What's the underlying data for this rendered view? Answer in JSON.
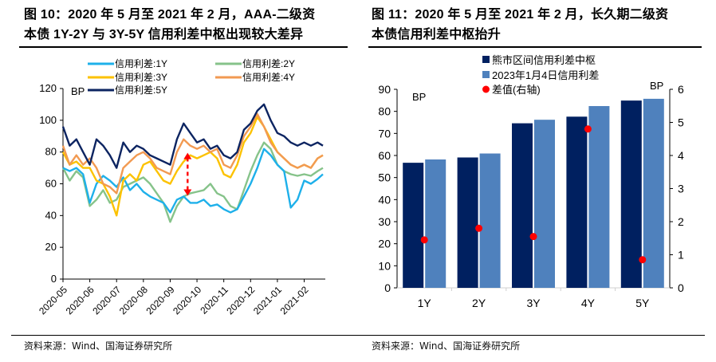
{
  "figures": {
    "left_title_line1": "图 10：2020 年 5 月至 2021 年 2 月，AAA-二级资",
    "left_title_line2": "本债 1Y-2Y 与 3Y-5Y 信用利差中枢出现较大差异",
    "right_title_line1": "图 11：2020 年 5 月至 2021 年 2 月，长久期二级资",
    "right_title_line2": "本债信用利差中枢抬升",
    "left_source": "资料来源：Wind、国海证券研究所",
    "right_source": "资料来源：Wind、国海证券研究所"
  },
  "chart_data": [
    {
      "type": "line",
      "title": "2020 年 5 月至 2021 年 2 月，AAA-二级资本债 1Y-2Y 与 3Y-5Y 信用利差中枢出现较大差异",
      "xlabel": "",
      "ylabel": "BP",
      "ylim": [
        0,
        120
      ],
      "yticks": [
        "0",
        "20",
        "40",
        "60",
        "80",
        "100",
        "120"
      ],
      "xlim": [
        "2020-05-01",
        "2021-02-22"
      ],
      "xticks": [
        "2020-05",
        "2020-06",
        "2020-07",
        "2020-08",
        "2020-09",
        "2020-10",
        "2020-11",
        "2020-12",
        "2021-01",
        "2021-02"
      ],
      "grid": false,
      "legend": "top",
      "annotation": "red dashed double-arrow near 2020-09-20 between ~52 and ~80 BP",
      "annotation_arrow": {
        "x_month_index": 4.65,
        "y_from": 53,
        "y_to": 79,
        "color": "#ff0000"
      },
      "x_month_index": [
        0,
        0.25,
        0.5,
        0.75,
        1,
        1.25,
        1.5,
        1.75,
        2,
        2.25,
        2.5,
        2.75,
        3,
        3.25,
        3.5,
        3.75,
        4,
        4.25,
        4.5,
        4.75,
        5,
        5.25,
        5.5,
        5.75,
        6,
        6.25,
        6.5,
        6.75,
        7,
        7.25,
        7.5,
        7.75,
        8,
        8.25,
        8.5,
        8.75,
        9,
        9.25,
        9.5,
        9.7
      ],
      "series": [
        {
          "name": "信用利差:1Y",
          "color": "#1eb0ea",
          "values": [
            70,
            68,
            70,
            66,
            48,
            60,
            65,
            62,
            58,
            64,
            56,
            60,
            55,
            52,
            50,
            48,
            42,
            50,
            52,
            48,
            48,
            50,
            46,
            47,
            44,
            42,
            44,
            52,
            60,
            70,
            82,
            78,
            72,
            68,
            45,
            50,
            62,
            60,
            63,
            66
          ]
        },
        {
          "name": "信用利差:2Y",
          "color": "#86c38a",
          "values": [
            70,
            62,
            68,
            64,
            46,
            50,
            56,
            48,
            50,
            58,
            60,
            62,
            64,
            60,
            54,
            48,
            36,
            46,
            52,
            54,
            55,
            56,
            60,
            54,
            52,
            46,
            44,
            56,
            68,
            78,
            86,
            82,
            72,
            68,
            66,
            65,
            66,
            65,
            68,
            70
          ]
        },
        {
          "name": "信用利差:3Y",
          "color": "#fcc200",
          "values": [
            80,
            72,
            74,
            70,
            70,
            62,
            60,
            52,
            40,
            62,
            66,
            62,
            72,
            74,
            68,
            62,
            60,
            68,
            74,
            78,
            76,
            78,
            80,
            76,
            66,
            64,
            72,
            86,
            92,
            102,
            96,
            88,
            80,
            76,
            72,
            70,
            72,
            70,
            76,
            78
          ]
        },
        {
          "name": "信用利差:4Y",
          "color": "#f29a52",
          "values": [
            84,
            72,
            78,
            72,
            76,
            70,
            60,
            58,
            54,
            70,
            74,
            78,
            80,
            76,
            70,
            68,
            66,
            80,
            88,
            84,
            82,
            84,
            80,
            82,
            72,
            70,
            78,
            90,
            96,
            104,
            96,
            86,
            80,
            76,
            72,
            70,
            72,
            70,
            76,
            78
          ]
        },
        {
          "name": "信用利差:5Y",
          "color": "#0c2461",
          "values": [
            96,
            84,
            88,
            80,
            72,
            88,
            84,
            78,
            70,
            86,
            80,
            84,
            82,
            78,
            76,
            74,
            72,
            88,
            98,
            92,
            86,
            88,
            82,
            84,
            78,
            76,
            80,
            94,
            98,
            106,
            110,
            100,
            92,
            90,
            86,
            84,
            86,
            84,
            86,
            84
          ]
        }
      ]
    },
    {
      "type": "bar",
      "title": "2020 年 5 月至 2021 年 2 月，长久期二级资本债信用利差中枢抬升",
      "categories": [
        "1Y",
        "2Y",
        "3Y",
        "4Y",
        "5Y"
      ],
      "ylabel": "BP",
      "y2label": "BP",
      "ylim": [
        0,
        90
      ],
      "yticks": [
        "0",
        "10",
        "20",
        "30",
        "40",
        "50",
        "60",
        "70",
        "80",
        "90"
      ],
      "y2lim": [
        0,
        6
      ],
      "y2ticks": [
        "0",
        "1",
        "2",
        "3",
        "4",
        "5",
        "6"
      ],
      "grid": false,
      "legend": "top",
      "series": [
        {
          "name": "熊市区间信用利差中枢",
          "color": "#002060",
          "axis": "left",
          "kind": "bar",
          "values": [
            56.7,
            59.1,
            74.6,
            77.6,
            84.9
          ]
        },
        {
          "name": "2023年1月4日信用利差",
          "color": "#4f81bd",
          "axis": "left",
          "kind": "bar",
          "values": [
            58.2,
            60.9,
            76.2,
            82.4,
            85.7
          ]
        },
        {
          "name": "差值(右轴)",
          "color": "#ff0000",
          "axis": "right",
          "kind": "dot",
          "values": [
            1.45,
            1.8,
            1.55,
            4.8,
            0.85
          ]
        }
      ]
    }
  ]
}
